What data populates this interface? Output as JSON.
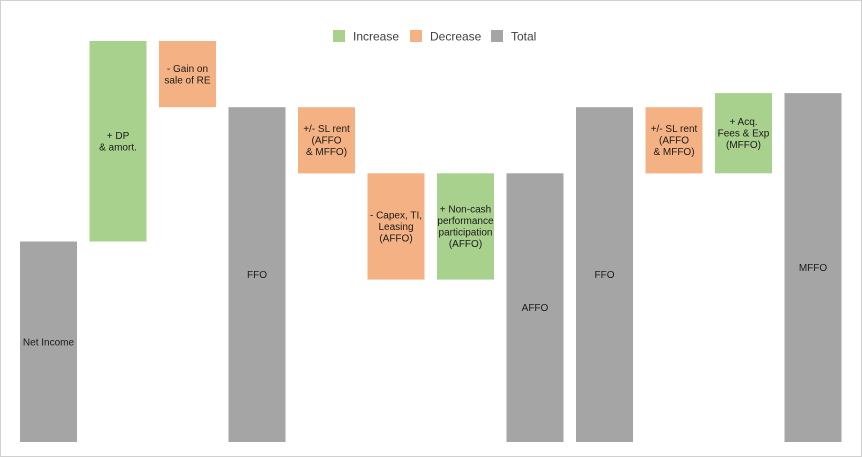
{
  "chart_data": {
    "type": "bar",
    "subtype": "waterfall",
    "title": "",
    "xlabel": "",
    "ylabel": "",
    "grid": false,
    "legend_position": "top-center",
    "ylim": [
      0,
      100
    ],
    "legend": [
      {
        "key": "increase",
        "label": "Increase",
        "color": "#a9d18e"
      },
      {
        "key": "decrease",
        "label": "Decrease",
        "color": "#f4b183"
      },
      {
        "key": "total",
        "label": "Total",
        "color": "#a5a5a5"
      }
    ],
    "bars": [
      {
        "label_lines": [
          "Net Income"
        ],
        "kind": "total",
        "base": 0,
        "top": 50
      },
      {
        "label_lines": [
          "+ DP",
          "& amort."
        ],
        "kind": "increase",
        "base": 50,
        "top": 100
      },
      {
        "label_lines": [
          "- Gain on",
          "sale of RE"
        ],
        "kind": "decrease",
        "base": 83.5,
        "top": 100
      },
      {
        "label_lines": [
          "FFO"
        ],
        "kind": "total",
        "base": 0,
        "top": 83.5
      },
      {
        "label_lines": [
          "+/- SL rent",
          "(AFFO",
          "& MFFO)"
        ],
        "kind": "decrease",
        "base": 67,
        "top": 83.5
      },
      {
        "label_lines": [
          "- Capex, TI,",
          "Leasing",
          "(AFFO)"
        ],
        "kind": "decrease",
        "base": 40.5,
        "top": 67
      },
      {
        "label_lines": [
          "+ Non-cash",
          "performance",
          "participation",
          "(AFFO)"
        ],
        "kind": "increase",
        "base": 40.5,
        "top": 67
      },
      {
        "label_lines": [
          "AFFO"
        ],
        "kind": "total",
        "base": 0,
        "top": 67
      },
      {
        "label_lines": [
          "FFO"
        ],
        "kind": "total",
        "base": 0,
        "top": 83.5
      },
      {
        "label_lines": [
          "+/- SL rent",
          "(AFFO",
          "& MFFO)"
        ],
        "kind": "decrease",
        "base": 67,
        "top": 83.5
      },
      {
        "label_lines": [
          "+ Acq.",
          "Fees & Exp",
          "(MFFO)"
        ],
        "kind": "increase",
        "base": 67,
        "top": 87
      },
      {
        "label_lines": [
          "MFFO"
        ],
        "kind": "total",
        "base": 0,
        "top": 87
      }
    ]
  }
}
